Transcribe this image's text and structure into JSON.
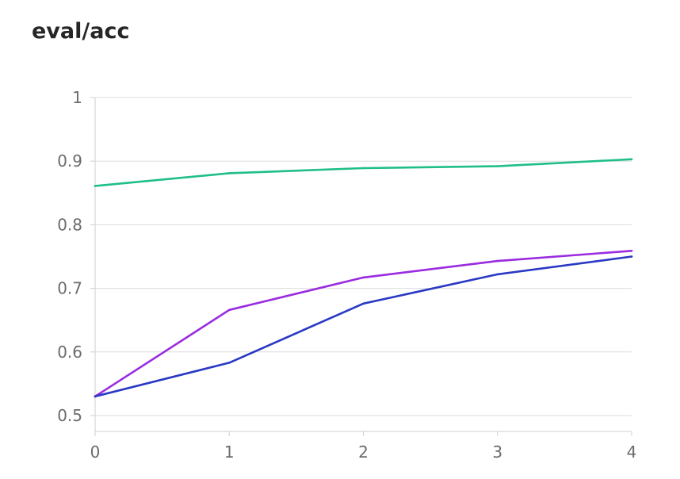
{
  "chart_data": {
    "type": "line",
    "title": "eval/acc",
    "xlabel": "",
    "ylabel": "",
    "x": [
      0,
      1,
      2,
      3,
      4
    ],
    "xlim": [
      0,
      4
    ],
    "ylim": [
      0.475,
      1.0
    ],
    "x_ticks": [
      "0",
      "1",
      "2",
      "3",
      "4"
    ],
    "y_ticks": [
      {
        "value": 1.0,
        "label": "1"
      },
      {
        "value": 0.9,
        "label": "0.9"
      },
      {
        "value": 0.8,
        "label": "0.8"
      },
      {
        "value": 0.7,
        "label": "0.7"
      },
      {
        "value": 0.6,
        "label": "0.6"
      },
      {
        "value": 0.5,
        "label": "0.5"
      }
    ],
    "grid": true,
    "legend": "none",
    "series": [
      {
        "color": "#1fbf86",
        "values": [
          0.861,
          0.881,
          0.889,
          0.892,
          0.903
        ]
      },
      {
        "color": "#9a2be0",
        "values": [
          0.53,
          0.666,
          0.717,
          0.743,
          0.759
        ]
      },
      {
        "color": "#2a39c4",
        "values": [
          0.53,
          0.583,
          0.676,
          0.722,
          0.75
        ]
      }
    ]
  }
}
